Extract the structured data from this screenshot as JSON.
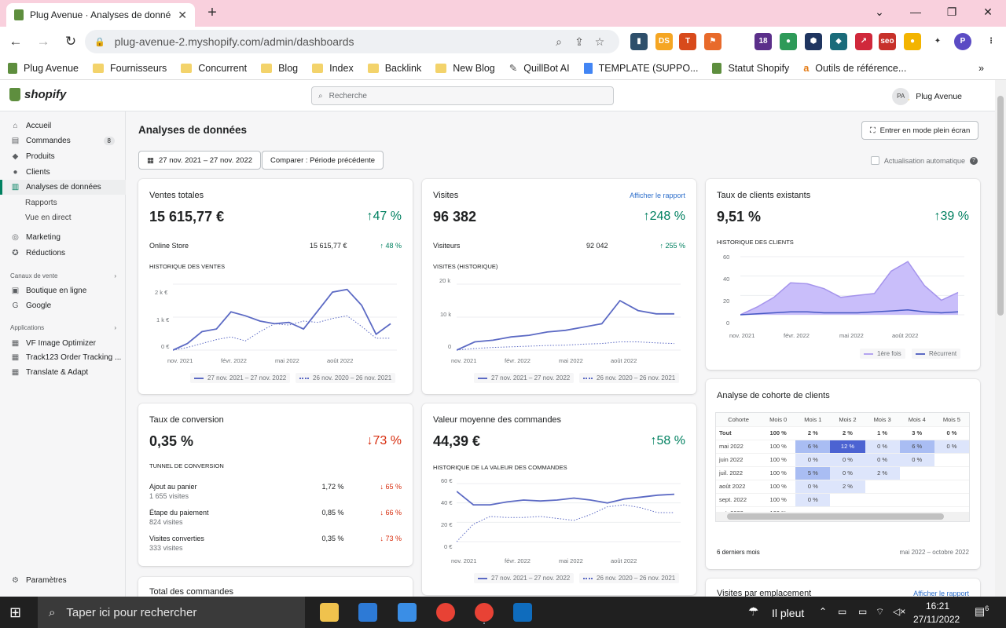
{
  "browser": {
    "tab_title": "Plug Avenue · Analyses de donné",
    "url": "plug-avenue-2.myshopify.com/admin/dashboards",
    "bookmarks": [
      "Plug Avenue",
      "Fournisseurs",
      "Concurrent",
      "Blog",
      "Index",
      "Backlink",
      "New Blog",
      "QuillBot AI",
      "TEMPLATE (SUPPO...",
      "Statut Shopify",
      "Outils de référence..."
    ],
    "ext_badge": "18"
  },
  "shopify": {
    "logo": "shopify",
    "search_placeholder": "Recherche",
    "avatar": "PA",
    "store": "Plug Avenue"
  },
  "sidebar": {
    "items": [
      {
        "label": "Accueil",
        "icon": "home-icon"
      },
      {
        "label": "Commandes",
        "icon": "orders-icon",
        "badge": "8"
      },
      {
        "label": "Produits",
        "icon": "tag-icon"
      },
      {
        "label": "Clients",
        "icon": "person-icon"
      },
      {
        "label": "Analyses de données",
        "icon": "analytics-icon"
      },
      {
        "label": "Rapports"
      },
      {
        "label": "Vue en direct"
      },
      {
        "label": "Marketing",
        "icon": "target-icon"
      },
      {
        "label": "Réductions",
        "icon": "discount-icon"
      }
    ],
    "channels_title": "Canaux de vente",
    "channels": [
      "Boutique en ligne",
      "Google"
    ],
    "apps_title": "Applications",
    "apps": [
      "VF Image Optimizer",
      "Track123 Order Tracking ...",
      "Translate & Adapt"
    ],
    "settings": "Paramètres"
  },
  "page": {
    "title": "Analyses de données",
    "fullscreen": "Entrer en mode plein écran",
    "date_range": "27 nov. 2021 – 27 nov. 2022",
    "compare": "Comparer : Période précédente",
    "auto_refresh": "Actualisation automatique"
  },
  "cards": {
    "sales": {
      "title": "Ventes totales",
      "value": "15 615,77 €",
      "change": "↑47 %",
      "row_label": "Online Store",
      "row_value": "15 615,77 €",
      "row_change": "↑ 48 %",
      "chart_title": "HISTORIQUE DES VENTES"
    },
    "visits": {
      "title": "Visites",
      "link": "Afficher le rapport",
      "value": "96 382",
      "change": "↑248 %",
      "row_label": "Visiteurs",
      "row_value": "92 042",
      "row_change": "↑ 255 %",
      "chart_title": "VISITES (HISTORIQUE)"
    },
    "returning": {
      "title": "Taux de clients existants",
      "value": "9,51 %",
      "change": "↑39 %",
      "chart_title": "HISTORIQUE DES CLIENTS",
      "legend1": "1ère fois",
      "legend2": "Récurrent"
    },
    "conversion": {
      "title": "Taux de conversion",
      "value": "0,35 %",
      "change": "↓73 %",
      "funnel_title": "TUNNEL DE CONVERSION",
      "rows": [
        {
          "label": "Ajout au panier",
          "sub": "1 655 visites",
          "pct": "1,72 %",
          "chg": "↓ 65 %"
        },
        {
          "label": "Étape du paiement",
          "sub": "824 visites",
          "pct": "0,85 %",
          "chg": "↓ 66 %"
        },
        {
          "label": "Visites converties",
          "sub": "333 visites",
          "pct": "0,35 %",
          "chg": "↓ 73 %"
        }
      ]
    },
    "aov": {
      "title": "Valeur moyenne des commandes",
      "value": "44,39 €",
      "change": "↑58 %",
      "chart_title": "HISTORIQUE DE LA VALEUR DES COMMANDES"
    },
    "cohort": {
      "title": "Analyse de cohorte de clients",
      "footer_left": "6 derniers mois",
      "footer_right": "mai 2022 – octobre 2022",
      "headers": [
        "Cohorte",
        "Mois 0",
        "Mois 1",
        "Mois 2",
        "Mois 3",
        "Mois 4",
        "Mois 5"
      ],
      "rows": [
        [
          "Tout",
          "100 %",
          "2 %",
          "2 %",
          "1 %",
          "3 %",
          "0 %"
        ],
        [
          "mai 2022",
          "100 %",
          "6 %",
          "12 %",
          "0 %",
          "6 %",
          "0 %"
        ],
        [
          "juin 2022",
          "100 %",
          "0 %",
          "0 %",
          "0 %",
          "0 %",
          ""
        ],
        [
          "juil. 2022",
          "100 %",
          "5 %",
          "0 %",
          "2 %",
          "",
          ""
        ],
        [
          "août 2022",
          "100 %",
          "0 %",
          "2 %",
          "",
          "",
          ""
        ],
        [
          "sept. 2022",
          "100 %",
          "0 %",
          "",
          "",
          "",
          ""
        ],
        [
          "oct. 2022",
          "100 %",
          "",
          "",
          "",
          "",
          ""
        ]
      ]
    },
    "orders": {
      "title": "Total des commandes"
    },
    "location": {
      "title": "Visites par emplacement",
      "link": "Afficher le rapport"
    }
  },
  "legend": {
    "current": "27 nov. 2021 – 27 nov. 2022",
    "previous": "26 nov. 2020 – 26 nov. 2021"
  },
  "chart_data": [
    {
      "type": "line",
      "title": "HISTORIQUE DES VENTES",
      "x_ticks": [
        "nov. 2021",
        "févr. 2022",
        "mai 2022",
        "août 2022"
      ],
      "y_ticks": [
        "0 €",
        "1 k €",
        "2 k €"
      ],
      "ylim": [
        0,
        2500
      ],
      "series": [
        {
          "name": "27 nov. 2021 – 27 nov. 2022",
          "values": [
            0,
            250,
            700,
            800,
            1450,
            1300,
            1100,
            1000,
            1050,
            800,
            1500,
            2200,
            2300,
            1700,
            600,
            1000
          ]
        },
        {
          "name": "26 nov. 2020 – 26 nov. 2021",
          "values": [
            0,
            100,
            250,
            400,
            500,
            350,
            700,
            1000,
            950,
            1100,
            1050,
            1200,
            1300,
            900,
            450,
            450
          ]
        }
      ]
    },
    {
      "type": "line",
      "title": "VISITES (HISTORIQUE)",
      "x_ticks": [
        "nov. 2021",
        "févr. 2022",
        "mai 2022",
        "août 2022"
      ],
      "y_ticks": [
        "0",
        "10 k",
        "20 k"
      ],
      "ylim": [
        0,
        20000
      ],
      "series": [
        {
          "name": "27 nov. 2021 – 27 nov. 2022",
          "values": [
            0,
            2500,
            3000,
            4000,
            4500,
            5500,
            6000,
            7000,
            8000,
            15000,
            12000,
            11000,
            11000
          ]
        },
        {
          "name": "26 nov. 2020 – 26 nov. 2021",
          "values": [
            0,
            500,
            800,
            1000,
            1200,
            1400,
            1500,
            1800,
            2000,
            2500,
            2500,
            2200,
            2000
          ]
        }
      ]
    },
    {
      "type": "area",
      "title": "HISTORIQUE DES CLIENTS",
      "x_ticks": [
        "nov. 2021",
        "févr. 2022",
        "mai 2022",
        "août 2022"
      ],
      "y_ticks": [
        "0",
        "20",
        "40",
        "60"
      ],
      "ylim": [
        0,
        60
      ],
      "series": [
        {
          "name": "1ère fois",
          "values": [
            0,
            8,
            18,
            33,
            32,
            27,
            18,
            20,
            22,
            45,
            55,
            30,
            15,
            23
          ]
        },
        {
          "name": "Récurrent",
          "values": [
            0,
            1,
            2,
            3,
            3,
            2,
            2,
            2,
            3,
            4,
            5,
            3,
            2,
            3
          ]
        }
      ]
    },
    {
      "type": "line",
      "title": "HISTORIQUE DE LA VALEUR DES COMMANDES",
      "x_ticks": [
        "nov. 2021",
        "févr. 2022",
        "mai 2022",
        "août 2022"
      ],
      "y_ticks": [
        "0 €",
        "20 €",
        "40 €",
        "60 €"
      ],
      "ylim": [
        0,
        60
      ],
      "series": [
        {
          "name": "27 nov. 2021 – 27 nov. 2022",
          "values": [
            52,
            38,
            38,
            41,
            43,
            42,
            43,
            45,
            43,
            40,
            44,
            46,
            48,
            49
          ]
        },
        {
          "name": "26 nov. 2020 – 26 nov. 2021",
          "values": [
            0,
            18,
            26,
            25,
            25,
            26,
            24,
            22,
            28,
            36,
            38,
            35,
            30,
            30
          ]
        }
      ]
    }
  ],
  "taskbar": {
    "search": "Taper ici pour rechercher",
    "weather": "Il pleut",
    "time": "16:21",
    "date": "27/11/2022",
    "notif": "6"
  }
}
